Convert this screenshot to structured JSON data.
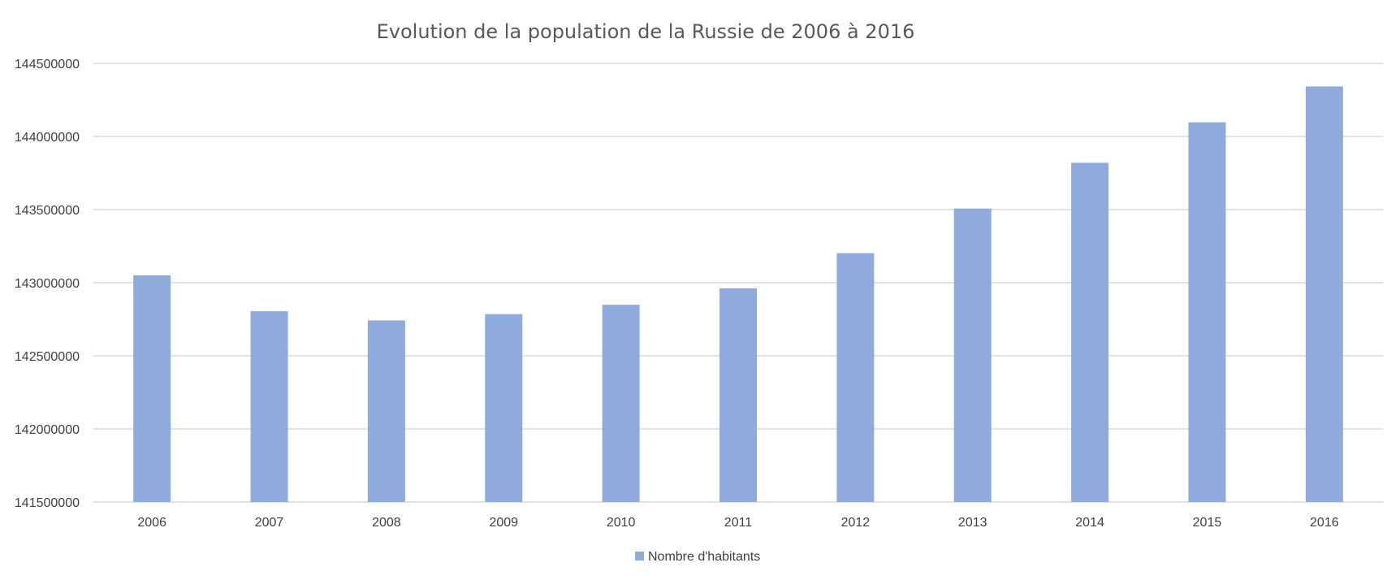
{
  "chart_data": {
    "type": "bar",
    "title": "Evolution de la population de la Russie de 2006 à 2016",
    "xlabel": "",
    "ylabel": "",
    "categories": [
      "2006",
      "2007",
      "2008",
      "2009",
      "2010",
      "2011",
      "2012",
      "2013",
      "2014",
      "2015",
      "2016"
    ],
    "series": [
      {
        "name": "Nombre d'habitants",
        "color": "#8faadc",
        "values": [
          143050000,
          142805000,
          142742000,
          142785000,
          142849000,
          142961000,
          143202000,
          143507000,
          143820000,
          144097000,
          144342000
        ]
      }
    ],
    "ylim": [
      141500000,
      144500000
    ],
    "yticks": [
      "141500000",
      "142000000",
      "142500000",
      "143000000",
      "143500000",
      "144000000",
      "144500000"
    ],
    "grid": true,
    "legend_position": "bottom",
    "gridline_color": "#d9d9d9"
  }
}
